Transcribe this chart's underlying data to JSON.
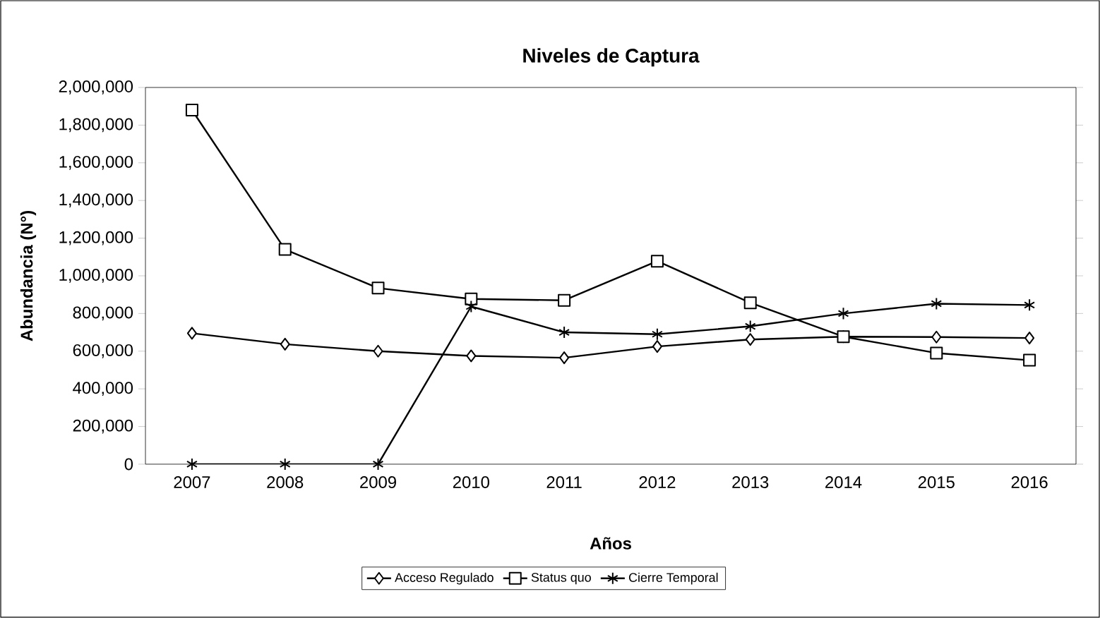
{
  "chart_data": {
    "type": "line",
    "title": "Niveles de Captura",
    "xlabel": "Años",
    "ylabel": "Abundancia (N°)",
    "categories": [
      "2007",
      "2008",
      "2009",
      "2010",
      "2011",
      "2012",
      "2013",
      "2014",
      "2015",
      "2016"
    ],
    "series": [
      {
        "name": "Acceso Regulado",
        "color": "#000000",
        "marker": "diamond",
        "values": [
          695000,
          637000,
          600000,
          575000,
          565000,
          625000,
          662000,
          677000,
          675000,
          670000
        ]
      },
      {
        "name": "Status quo",
        "color": "#000000",
        "marker": "square",
        "values": [
          1880000,
          1140000,
          935000,
          877000,
          870000,
          1078000,
          857000,
          677000,
          590000,
          552000
        ]
      },
      {
        "name": "Cierre Temporal",
        "color": "#000000",
        "marker": "cross",
        "values": [
          0,
          0,
          0,
          837000,
          700000,
          690000,
          732000,
          800000,
          852000,
          845000
        ]
      }
    ],
    "ylim": [
      0,
      2000000
    ],
    "yticks": [
      0,
      {
        "value": 200000,
        "label": "200,000"
      },
      {
        "value": 400000,
        "label": "400,000"
      },
      {
        "value": 600000,
        "label": "600,000"
      },
      {
        "value": 800000,
        "label": "800,000"
      },
      {
        "value": 1000000,
        "label": "1,000,000"
      },
      {
        "value": 1200000,
        "label": "1,200,000"
      },
      {
        "value": 1400000,
        "label": "1,400,000"
      },
      {
        "value": 1600000,
        "label": "1,600,000"
      },
      {
        "value": 1800000,
        "label": "1,800,000"
      },
      {
        "value": 2000000,
        "label": "2,000,000"
      }
    ],
    "grid": false,
    "legend": "bottom",
    "line_style": "solid"
  }
}
